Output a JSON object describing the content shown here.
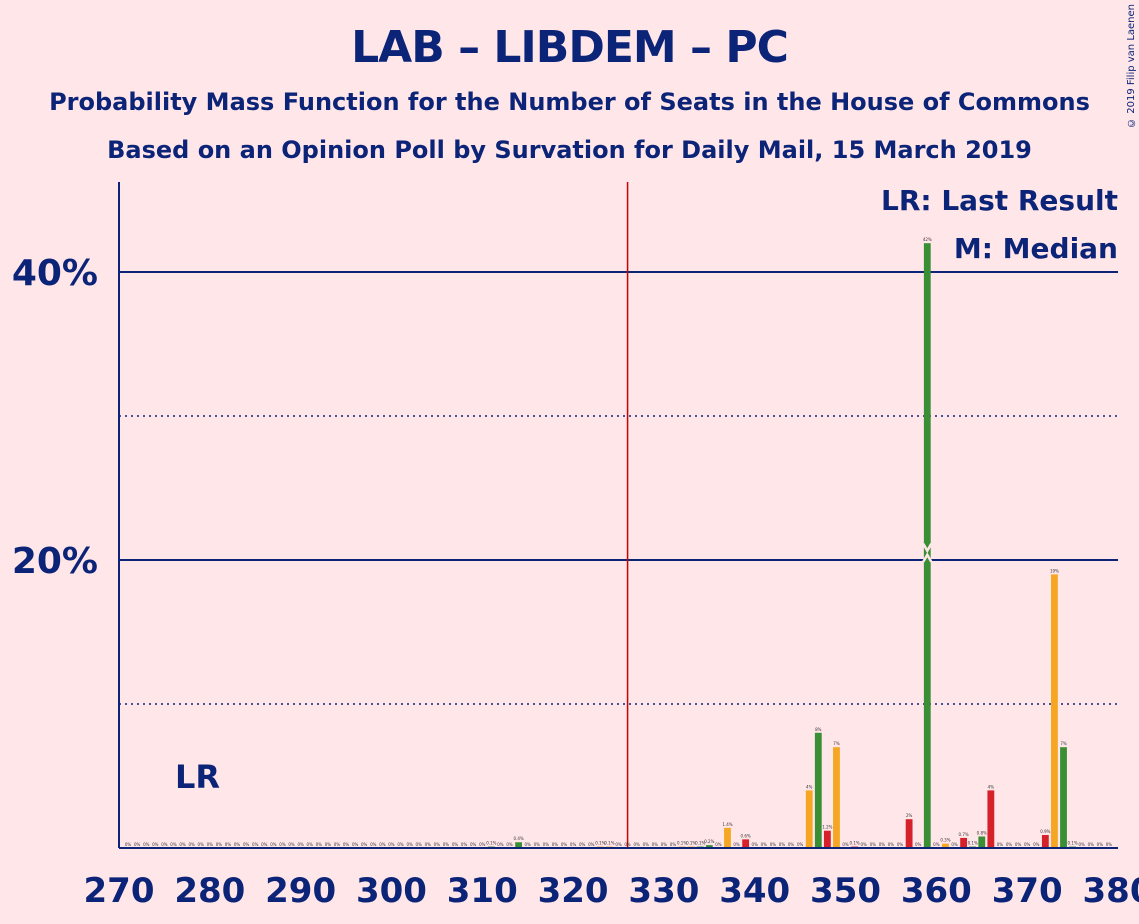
{
  "title": "LAB – LIBDEM – PC",
  "subtitle": "Probability Mass Function for the Number of Seats in the House of Commons",
  "subtitle2": "Based on an Opinion Poll by Survation for Daily Mail, 15 March 2019",
  "copyright": "© 2019 Filip van Laenen",
  "legend": {
    "last_result": "LR: Last Result",
    "median": "M: Median"
  },
  "lr_marker": "LR",
  "colors": {
    "background": "#FFE6E9",
    "text": "#0C2478",
    "majority_line": "#CC0000",
    "green": "#3A8E34",
    "orange": "#F5A623",
    "red": "#D6202A"
  },
  "chart_data": {
    "type": "bar",
    "xlim": [
      270,
      380
    ],
    "ylim": [
      0,
      46
    ],
    "x_ticks": [
      270,
      280,
      290,
      300,
      310,
      320,
      330,
      340,
      350,
      360,
      370,
      380
    ],
    "y_ticks": [
      {
        "value": 10,
        "label": "",
        "style": "dotted"
      },
      {
        "value": 20,
        "label": "20%",
        "style": "solid"
      },
      {
        "value": 30,
        "label": "",
        "style": "dotted"
      },
      {
        "value": 40,
        "label": "40%",
        "style": "solid"
      }
    ],
    "majority_seat": 326,
    "last_result_seat": 278,
    "median_seat": 359,
    "bars": [
      {
        "seat": 311,
        "value": 0.1,
        "color": "green",
        "label": "0.1%"
      },
      {
        "seat": 314,
        "value": 0.4,
        "color": "green",
        "label": "0.4%"
      },
      {
        "seat": 323,
        "value": 0.1,
        "color": "orange",
        "label": "0.1%"
      },
      {
        "seat": 324,
        "value": 0.1,
        "color": "orange",
        "label": "0.1%"
      },
      {
        "seat": 332,
        "value": 0.1,
        "color": "orange",
        "label": "0.1%"
      },
      {
        "seat": 333,
        "value": 0.1,
        "color": "orange",
        "label": "0.1%"
      },
      {
        "seat": 334,
        "value": 0.1,
        "color": "green",
        "label": "0.1%"
      },
      {
        "seat": 335,
        "value": 0.2,
        "color": "green",
        "label": "0.2%"
      },
      {
        "seat": 337,
        "value": 1.4,
        "color": "orange",
        "label": "1.4%"
      },
      {
        "seat": 339,
        "value": 0.6,
        "color": "red",
        "label": "0.6%"
      },
      {
        "seat": 346,
        "value": 4,
        "color": "orange",
        "label": "4%"
      },
      {
        "seat": 347,
        "value": 8,
        "color": "green",
        "label": "8%"
      },
      {
        "seat": 348,
        "value": 1.2,
        "color": "red",
        "label": "1.2%"
      },
      {
        "seat": 349,
        "value": 7,
        "color": "orange",
        "label": "7%"
      },
      {
        "seat": 351,
        "value": 0.1,
        "color": "red",
        "label": "0.1%"
      },
      {
        "seat": 357,
        "value": 2,
        "color": "red",
        "label": "2%"
      },
      {
        "seat": 359,
        "value": 42,
        "color": "green",
        "label": "42%"
      },
      {
        "seat": 361,
        "value": 0.3,
        "color": "orange",
        "label": "0.3%"
      },
      {
        "seat": 363,
        "value": 0.7,
        "color": "red",
        "label": "0.7%"
      },
      {
        "seat": 364,
        "value": 0.1,
        "color": "green",
        "label": "0.1%"
      },
      {
        "seat": 365,
        "value": 0.8,
        "color": "green",
        "label": "0.8%"
      },
      {
        "seat": 366,
        "value": 4,
        "color": "red",
        "label": "4%"
      },
      {
        "seat": 372,
        "value": 0.9,
        "color": "red",
        "label": "0.9%"
      },
      {
        "seat": 373,
        "value": 19,
        "color": "orange",
        "label": "19%"
      },
      {
        "seat": 374,
        "value": 7,
        "color": "green",
        "label": "7%"
      },
      {
        "seat": 375,
        "value": 0.1,
        "color": "green",
        "label": "0.1%"
      }
    ]
  }
}
